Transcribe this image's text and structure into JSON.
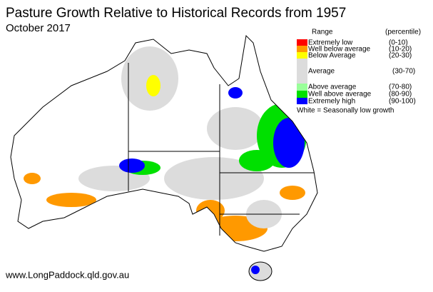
{
  "title": "Pasture Growth Relative to Historical Records from 1957",
  "subtitle": "October 2017",
  "legend": {
    "heading": "Range",
    "unit": "(percentile)",
    "items": [
      {
        "label": "Extremely low",
        "range": "(0-10)",
        "color": "#ff0000"
      },
      {
        "label": "Well below average",
        "range": "(10-20)",
        "color": "#ff9900"
      },
      {
        "label": "Below Average",
        "range": "(20-30)",
        "color": "#ffff00"
      },
      {
        "label": "Average",
        "range": "(30-70)",
        "color": "#dcdcdc"
      },
      {
        "label": "Above average",
        "range": "(70-80)",
        "color": "#99ff99"
      },
      {
        "label": "Well above average",
        "range": "(80-90)",
        "color": "#00e000"
      },
      {
        "label": "Extremely high",
        "range": "(90-100)",
        "color": "#0000ff"
      }
    ],
    "note": "White = Seasonally low growth"
  },
  "footer": "www.LongPaddock.qld.gov.au"
}
